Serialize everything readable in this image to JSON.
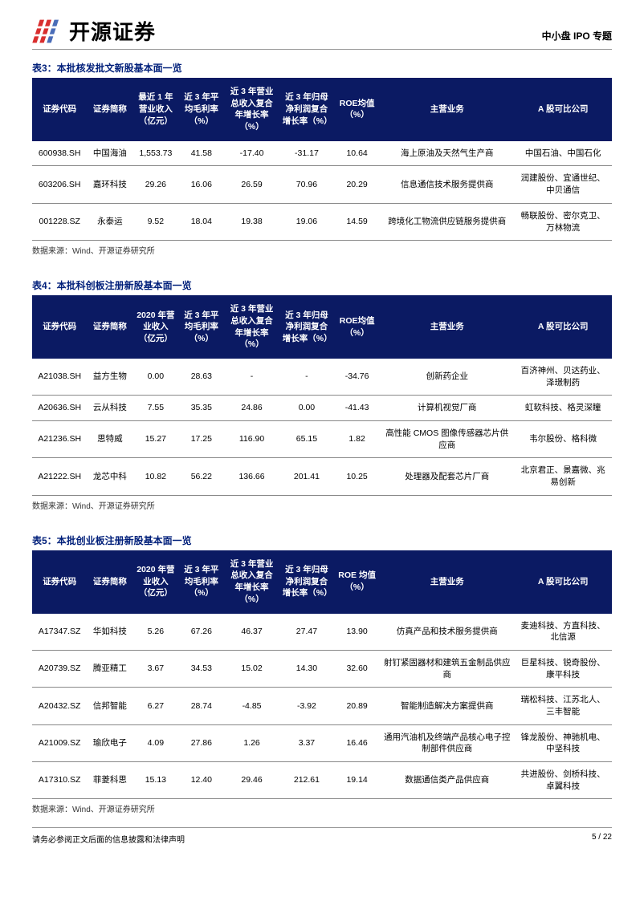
{
  "header": {
    "company_name": "开源证券",
    "doc_type": "中小盘 IPO 专题"
  },
  "logo_colors": {
    "red": "#d92e2e",
    "blue": "#4a6db8"
  },
  "tables": [
    {
      "title": "表3：本批核发批文新股基本面一览",
      "source": "数据来源：Wind、开源证券研究所",
      "columns": [
        "证券代码",
        "证券简称",
        "最近 1 年营业收入（亿元）",
        "近 3 年平均毛利率（%）",
        "近 3 年营业总收入复合年增长率（%）",
        "近 3 年归母净利润复合增长率（%）",
        "ROE均值（%）",
        "主营业务",
        "A 股可比公司"
      ],
      "rows": [
        [
          "600938.SH",
          "中国海油",
          "1,553.73",
          "41.58",
          "-17.40",
          "-31.17",
          "10.64",
          "海上原油及天然气生产商",
          "中国石油、中国石化"
        ],
        [
          "603206.SH",
          "嘉环科技",
          "29.26",
          "16.06",
          "26.59",
          "70.96",
          "20.29",
          "信息通信技术服务提供商",
          "润建股份、宜通世纪、中贝通信"
        ],
        [
          "001228.SZ",
          "永泰运",
          "9.52",
          "18.04",
          "19.38",
          "19.06",
          "14.59",
          "跨境化工物流供应链服务提供商",
          "畅联股份、密尔克卫、万林物流"
        ]
      ]
    },
    {
      "title": "表4：本批科创板注册新股基本面一览",
      "source": "数据来源：Wind、开源证券研究所",
      "columns": [
        "证券代码",
        "证券简称",
        "2020 年营业收入（亿元）",
        "近 3 年平均毛利率（%）",
        "近 3 年营业总收入复合年增长率（%）",
        "近 3 年归母净利润复合增长率（%）",
        "ROE均值（%）",
        "主营业务",
        "A 股可比公司"
      ],
      "rows": [
        [
          "A21038.SH",
          "益方生物",
          "0.00",
          "28.63",
          "-",
          "-",
          "-34.76",
          "创新药企业",
          "百济神州、贝达药业、泽璟制药"
        ],
        [
          "A20636.SH",
          "云从科技",
          "7.55",
          "35.35",
          "24.86",
          "0.00",
          "-41.43",
          "计算机视觉厂商",
          "虹软科技、格灵深瞳"
        ],
        [
          "A21236.SH",
          "思特威",
          "15.27",
          "17.25",
          "116.90",
          "65.15",
          "1.82",
          "高性能 CMOS 图像传感器芯片供应商",
          "韦尔股份、格科微"
        ],
        [
          "A21222.SH",
          "龙芯中科",
          "10.82",
          "56.22",
          "136.66",
          "201.41",
          "10.25",
          "处理器及配套芯片厂商",
          "北京君正、景嘉微、兆易创新"
        ]
      ]
    },
    {
      "title": "表5：本批创业板注册新股基本面一览",
      "source": "数据来源：Wind、开源证券研究所",
      "columns": [
        "证券代码",
        "证券简称",
        "2020 年营业收入（亿元）",
        "近 3 年平均毛利率（%）",
        "近 3 年营业总收入复合年增长率（%）",
        "近 3 年归母净利润复合增长率（%）",
        "ROE 均值（%）",
        "主营业务",
        "A 股可比公司"
      ],
      "rows": [
        [
          "A17347.SZ",
          "华如科技",
          "5.26",
          "67.26",
          "46.37",
          "27.47",
          "13.90",
          "仿真产品和技术服务提供商",
          "麦迪科技、方直科技、北信源"
        ],
        [
          "A20739.SZ",
          "腾亚精工",
          "3.67",
          "34.53",
          "15.02",
          "14.30",
          "32.60",
          "射钉紧固器材和建筑五金制品供应商",
          "巨星科技、锐奇股份、康平科技"
        ],
        [
          "A20432.SZ",
          "信邦智能",
          "6.27",
          "28.74",
          "-4.85",
          "-3.92",
          "20.89",
          "智能制造解决方案提供商",
          "瑞松科技、江苏北人、三丰智能"
        ],
        [
          "A21009.SZ",
          "瑜欣电子",
          "4.09",
          "27.86",
          "1.26",
          "3.37",
          "16.46",
          "通用汽油机及终端产品核心电子控制部件供应商",
          "锋龙股份、神驰机电、中坚科技"
        ],
        [
          "A17310.SZ",
          "菲菱科思",
          "15.13",
          "12.40",
          "29.46",
          "212.61",
          "19.14",
          "数据通信类产品供应商",
          "共进股份、剑桥科技、卓翼科技"
        ]
      ]
    }
  ],
  "footer": {
    "disclaimer": "请务必参阅正文后面的信息披露和法律声明",
    "page": "5 / 22"
  }
}
